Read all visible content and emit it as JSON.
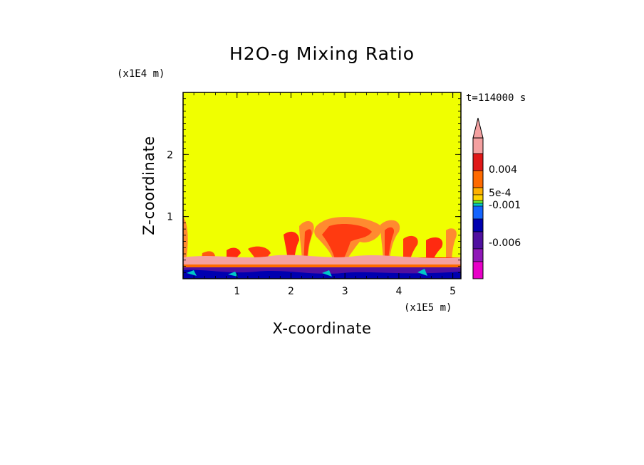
{
  "chart_data": {
    "type": "heatmap",
    "title": "H2O-g Mixing Ratio",
    "xlabel": "X-coordinate",
    "ylabel": "Z-coordinate",
    "x_scale_label": "(x1E5 m)",
    "y_scale_label": "(x1E4 m)",
    "time_label": "t=114000 s",
    "xlim": [
      0,
      5.15
    ],
    "ylim": [
      0,
      3.0
    ],
    "x_ticks": [
      {
        "value": 1,
        "label": "1"
      },
      {
        "value": 2,
        "label": "2"
      },
      {
        "value": 3,
        "label": "3"
      },
      {
        "value": 4,
        "label": "4"
      },
      {
        "value": 5,
        "label": "5"
      }
    ],
    "y_ticks": [
      {
        "value": 1,
        "label": "1"
      },
      {
        "value": 2,
        "label": "2"
      }
    ],
    "colorbar": {
      "labels": [
        "0.004",
        "5e-4",
        "-0.001",
        "-0.006"
      ],
      "colors_top_to_bottom": [
        "#f4a0a0",
        "#e01818",
        "#ff6a00",
        "#ffb000",
        "#ffd400",
        "#66ee33",
        "#00c8c8",
        "#1464ff",
        "#0000b0",
        "#5010a0",
        "#9018b8",
        "#e800c8"
      ]
    },
    "background_color": "#f0ff00",
    "notes_colors": {
      "red": "#ff2a10",
      "orange": "#ff6a00",
      "pink": "#f4a0a0",
      "purple": "#5010a0",
      "blue": "#1464ff"
    }
  }
}
